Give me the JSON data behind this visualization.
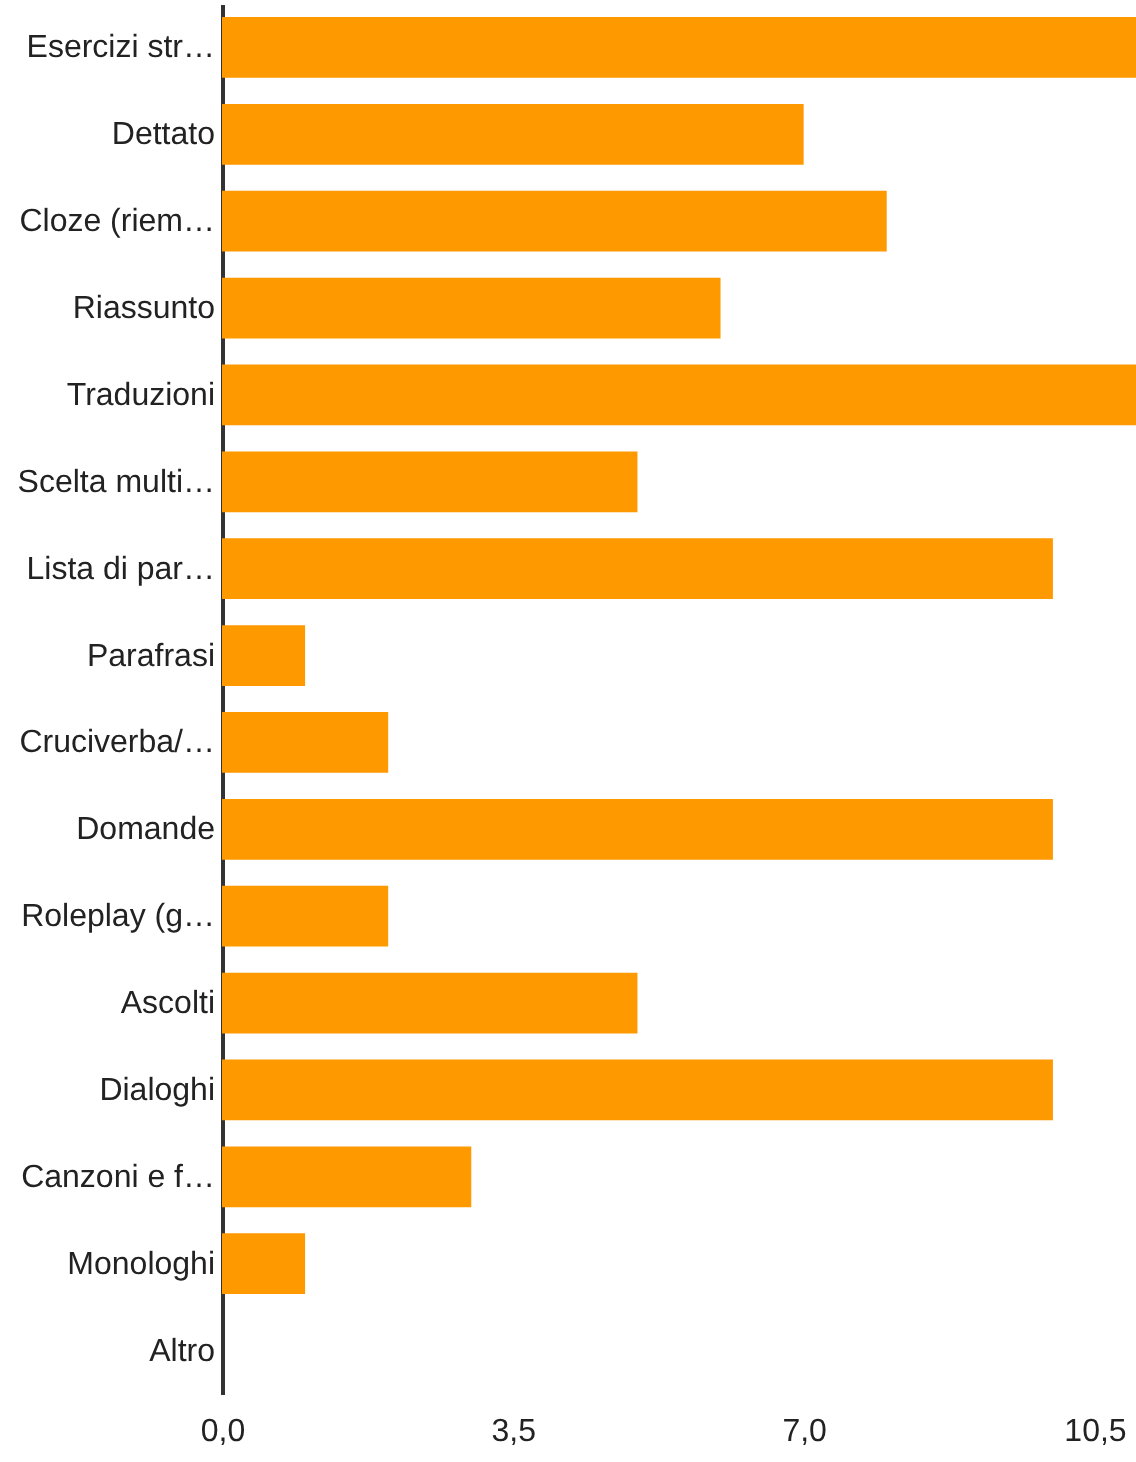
{
  "chart_data": {
    "type": "bar",
    "orientation": "horizontal",
    "categories": [
      "Esercizi str…",
      "Dettato",
      "Cloze (riem…",
      "Riassunto",
      "Traduzioni",
      "Scelta multi…",
      "Lista di par…",
      "Parafrasi",
      "Cruciverba/…",
      "Domande",
      "Roleplay (g…",
      "Ascolti",
      "Dialoghi",
      "Canzoni e f…",
      "Monologhi",
      "Altro"
    ],
    "values": [
      11,
      7,
      8,
      6,
      11,
      5,
      10,
      1,
      2,
      10,
      2,
      5,
      10,
      3,
      1,
      0
    ],
    "color": "#ff9900",
    "xlim": [
      0,
      11
    ],
    "xticks": [
      {
        "value": 0,
        "label": "0,0"
      },
      {
        "value": 3.5,
        "label": "3,5"
      },
      {
        "value": 7,
        "label": "7,0"
      },
      {
        "value": 10.5,
        "label": "10,5"
      }
    ],
    "grid": false
  }
}
